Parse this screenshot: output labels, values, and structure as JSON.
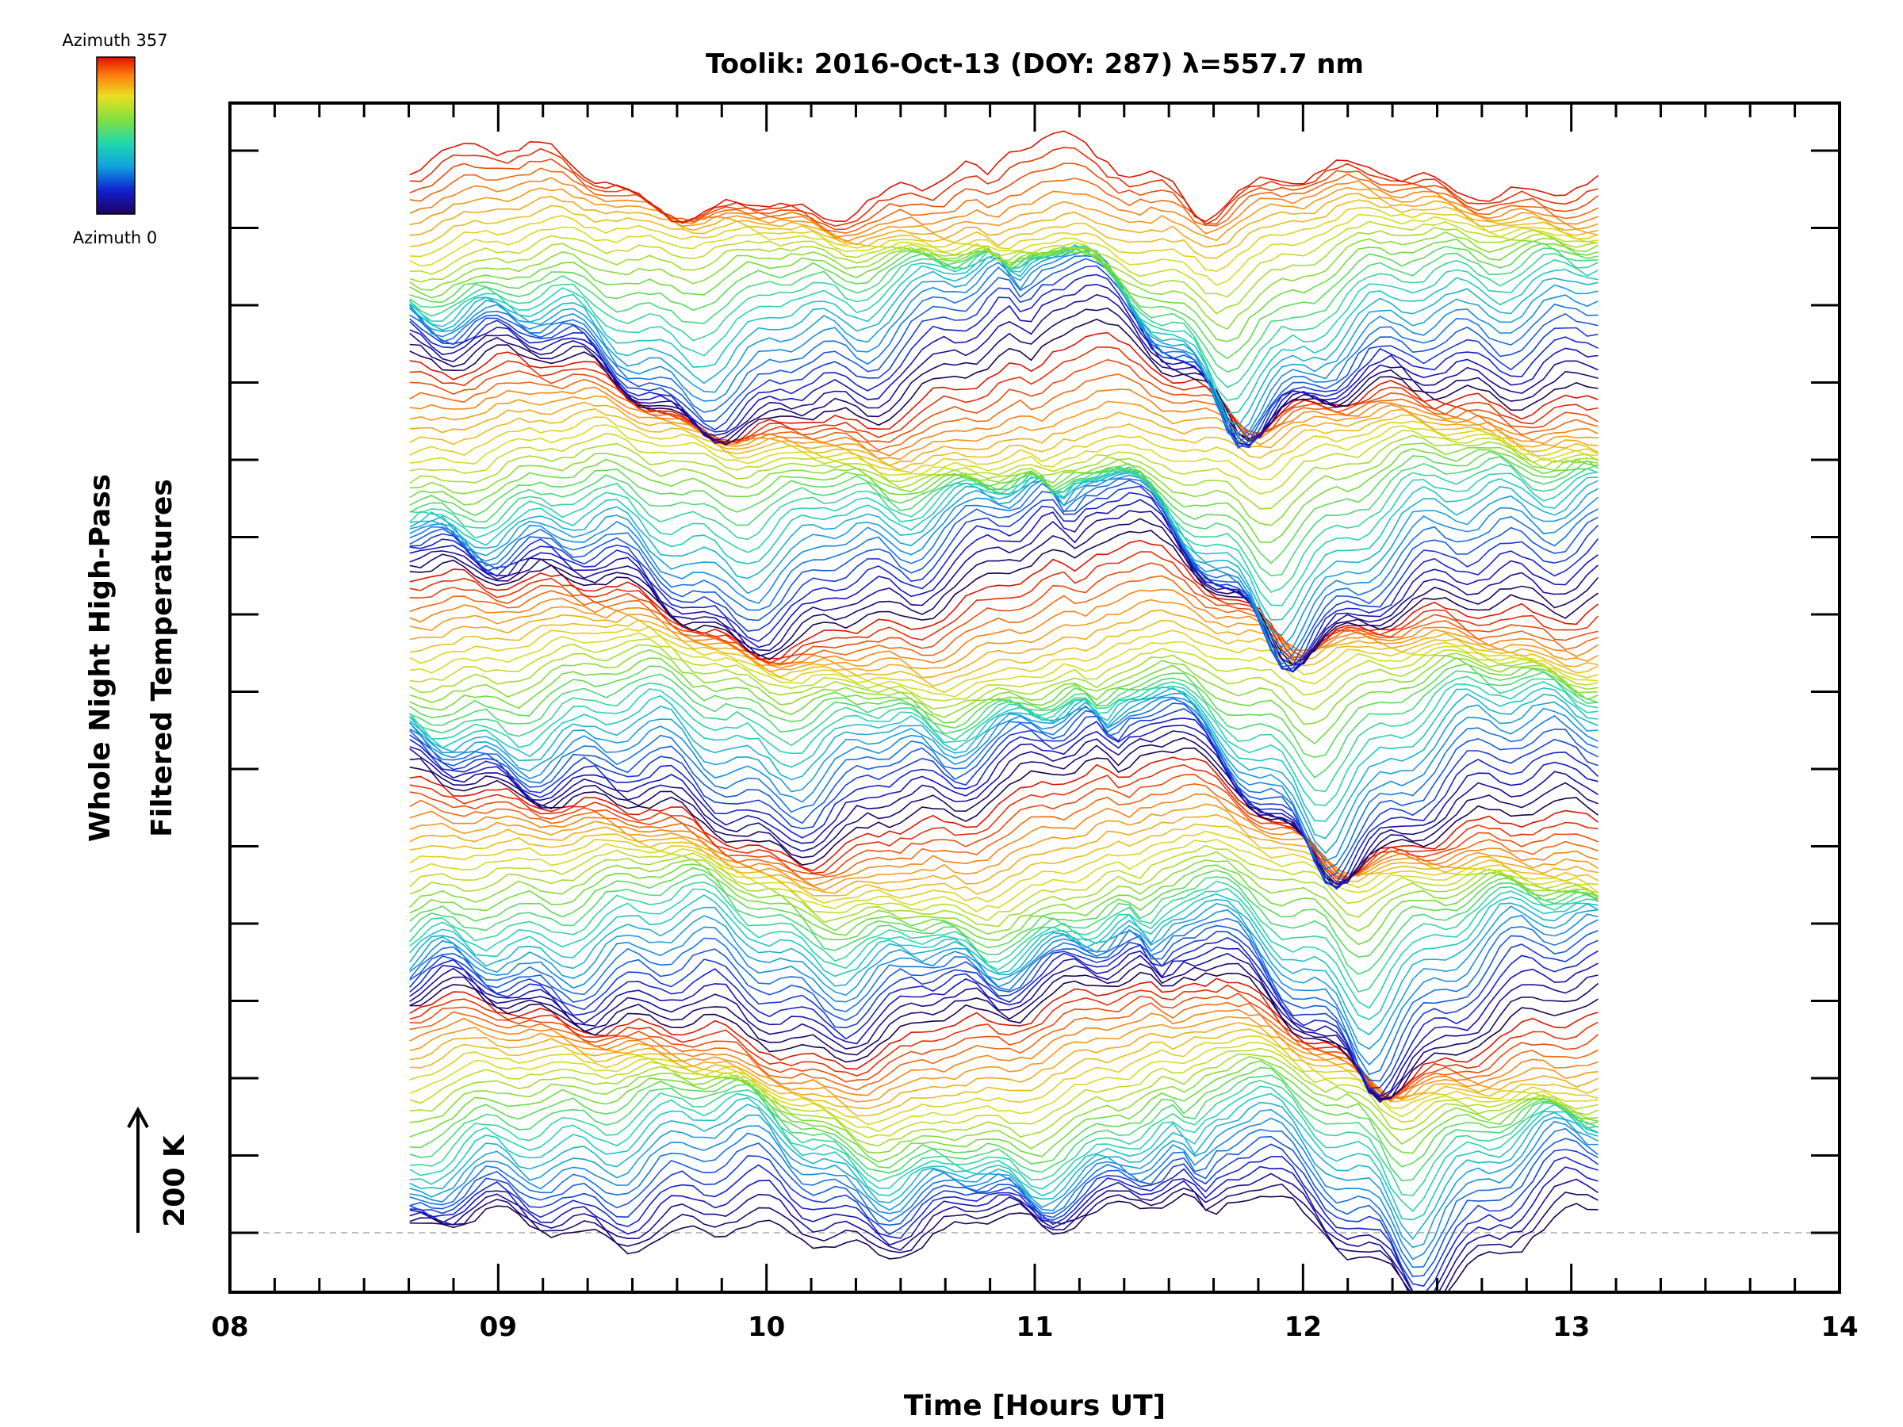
{
  "chart_data": {
    "type": "line",
    "title": "Toolik: 2016-Oct-13 (DOY: 287) λ=557.7 nm",
    "xlabel": "Time [Hours UT]",
    "ylabel_line1": "Whole Night High-Pass",
    "ylabel_line2": "Filtered Temperatures",
    "scale_bar_label": "200 K",
    "xlim": [
      8,
      14
    ],
    "x_ticks": [
      "08",
      "09",
      "10",
      "11",
      "12",
      "13",
      "14"
    ],
    "data_time_range": [
      8.67,
      13.1
    ],
    "n_traces": 150,
    "trace_offset": "stacked by azimuth index",
    "colorbar": {
      "top_label": "Azimuth  357",
      "bottom_label": "Azimuth  0",
      "colormap": "rainbow"
    },
    "baseline_style": "dashed gray",
    "colors": {
      "axis": "#000000",
      "baseline": "#aaaaaa"
    }
  }
}
